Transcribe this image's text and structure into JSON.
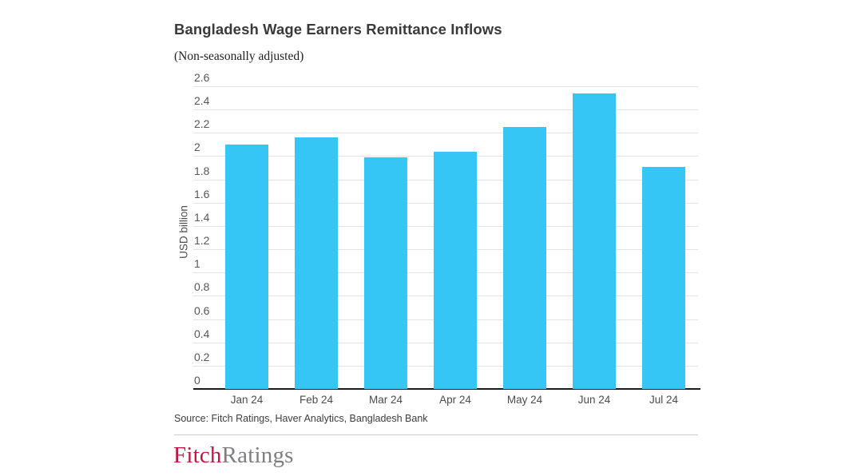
{
  "header": {
    "title": "Bangladesh Wage Earners Remittance Inflows",
    "subtitle": "(Non-seasonally adjusted)"
  },
  "chart_data": {
    "type": "bar",
    "title": "Bangladesh Wage Earners Remittance Inflows",
    "subtitle": "(Non-seasonally adjusted)",
    "categories": [
      "Jan 24",
      "Feb 24",
      "Mar 24",
      "Apr 24",
      "May 24",
      "Jun 24",
      "Jul 24"
    ],
    "values": [
      2.1,
      2.16,
      1.99,
      2.04,
      2.25,
      2.54,
      1.91
    ],
    "xlabel": "",
    "ylabel": "USD billion",
    "ylim": [
      0,
      2.6
    ],
    "ytick_step": 0.2,
    "grid": true,
    "legend": "none",
    "bar_color": "#36C6F6"
  },
  "footer": {
    "source": "Source: Fitch Ratings, Haver Analytics, Bangladesh Bank"
  },
  "logo": {
    "fitch": "Fitch",
    "ratings": "Ratings",
    "fitch_color": "#BE1942",
    "ratings_color": "#7C7E82"
  }
}
